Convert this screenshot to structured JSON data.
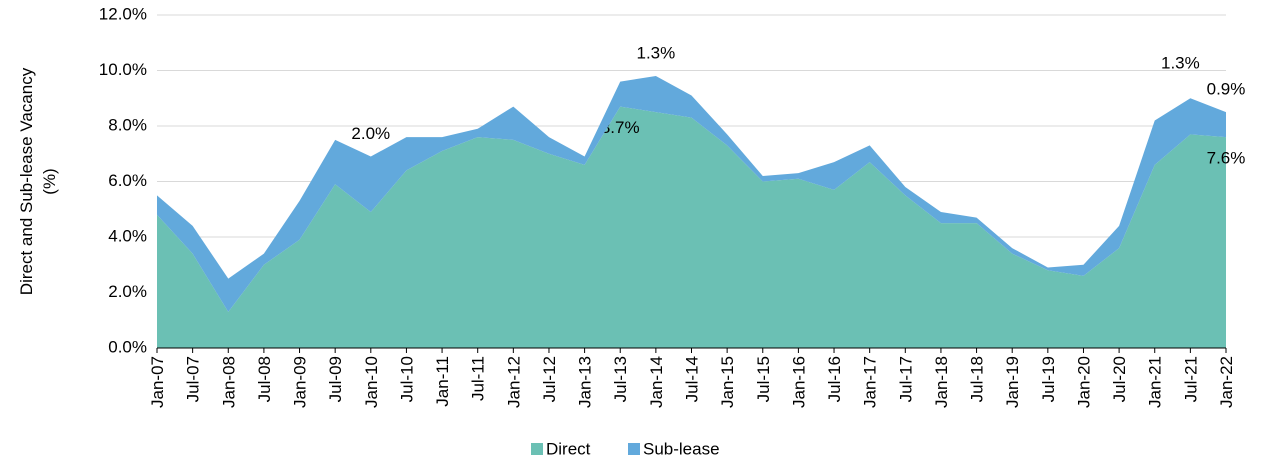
{
  "chart_data": {
    "type": "stacked-area",
    "y_label": [
      "Direct and Sub-lease Vacancy",
      "(%)"
    ],
    "categories": [
      "Jan-07",
      "Jul-07",
      "Jan-08",
      "Jul-08",
      "Jan-09",
      "Jul-09",
      "Jan-10",
      "Jul-10",
      "Jan-11",
      "Jul-11",
      "Jan-12",
      "Jul-12",
      "Jan-13",
      "Jul-13",
      "Jan-14",
      "Jul-14",
      "Jan-15",
      "Jul-15",
      "Jan-16",
      "Jul-16",
      "Jan-17",
      "Jul-17",
      "Jan-18",
      "Jul-18",
      "Jan-19",
      "Jul-19",
      "Jan-20",
      "Jul-20",
      "Jan-21",
      "Jul-21",
      "Jan-22"
    ],
    "series": [
      {
        "name": "Direct",
        "color": "#6bc0b4",
        "values": [
          4.8,
          3.4,
          1.3,
          3.0,
          3.9,
          5.9,
          4.9,
          6.4,
          7.1,
          7.6,
          7.5,
          7.0,
          6.6,
          8.7,
          8.5,
          8.3,
          7.3,
          6.0,
          6.1,
          5.7,
          6.7,
          5.5,
          4.5,
          4.5,
          3.4,
          2.8,
          2.6,
          3.6,
          6.6,
          7.7,
          7.6
        ],
        "value_labels": [
          null,
          null,
          null,
          null,
          null,
          null,
          null,
          null,
          null,
          null,
          null,
          null,
          null,
          "8.7%",
          null,
          null,
          null,
          null,
          null,
          null,
          null,
          null,
          null,
          null,
          null,
          null,
          null,
          null,
          null,
          null,
          "7.6%"
        ]
      },
      {
        "name": "Sub-lease",
        "color": "#62a9dc",
        "values": [
          0.7,
          1.0,
          1.2,
          0.4,
          1.4,
          1.6,
          2.0,
          1.2,
          0.5,
          0.3,
          1.2,
          0.6,
          0.3,
          0.9,
          1.3,
          0.8,
          0.4,
          0.2,
          0.2,
          1.0,
          0.6,
          0.3,
          0.4,
          0.2,
          0.2,
          0.1,
          0.4,
          0.8,
          1.6,
          1.3,
          0.9
        ],
        "value_labels": [
          null,
          null,
          null,
          null,
          null,
          null,
          "2.0%",
          null,
          null,
          null,
          null,
          null,
          null,
          null,
          "1.3%",
          null,
          null,
          null,
          null,
          null,
          null,
          null,
          null,
          null,
          null,
          null,
          null,
          null,
          null,
          "1.3%",
          "0.9%"
        ]
      }
    ],
    "ylim": [
      0,
      12
    ],
    "yticks": [
      {
        "value": 0,
        "label": "0.0%"
      },
      {
        "value": 2,
        "label": "2.0%"
      },
      {
        "value": 4,
        "label": "4.0%"
      },
      {
        "value": 6,
        "label": "6.0%"
      },
      {
        "value": 8,
        "label": "8.0%"
      },
      {
        "value": 10,
        "label": "10.0%"
      },
      {
        "value": 12,
        "label": "12.0%"
      }
    ],
    "grid": true
  }
}
